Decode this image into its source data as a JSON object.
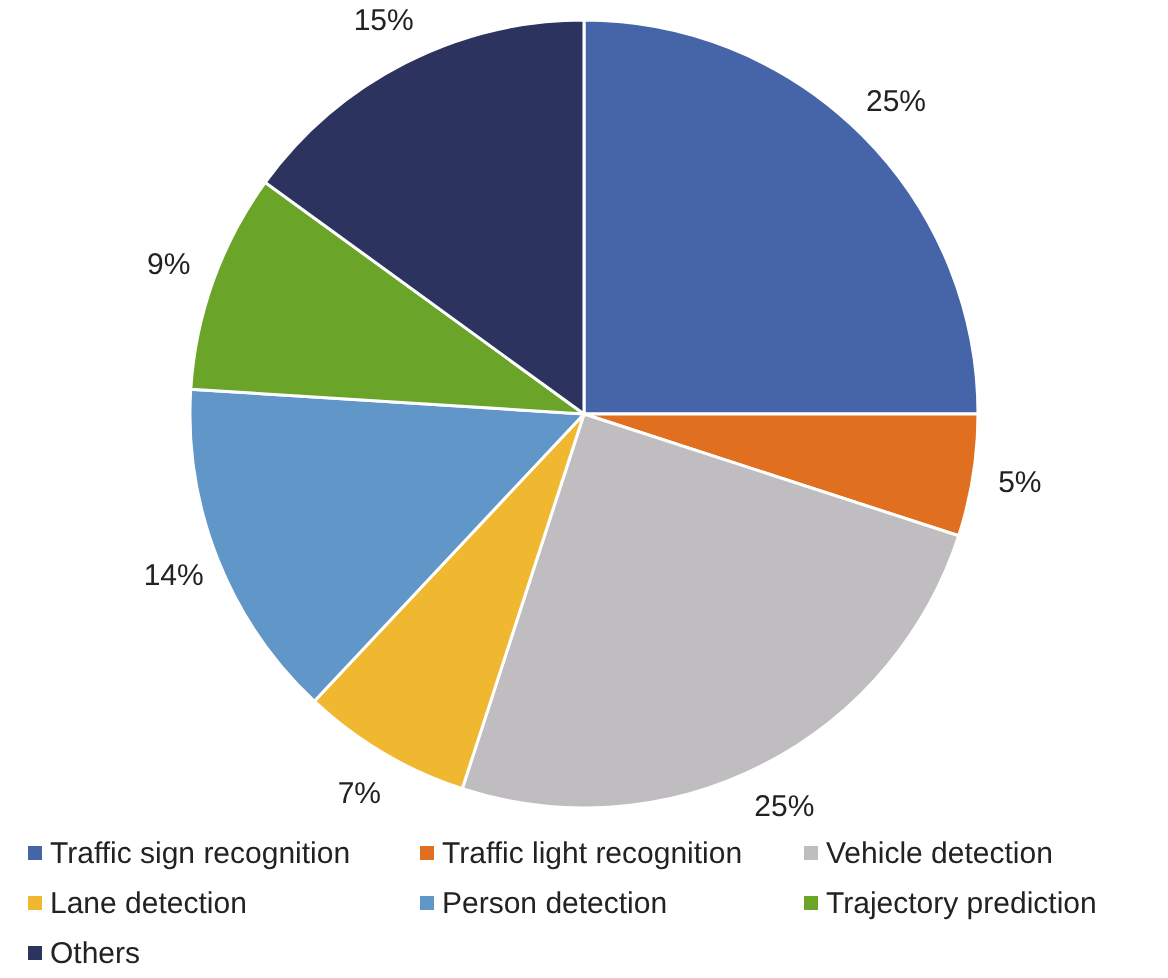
{
  "chart_data": {
    "type": "pie",
    "categories": [
      "Traffic sign recognition",
      "Traffic light recognition",
      "Vehicle detection",
      "Lane detection",
      "Person detection",
      "Trajectory prediction",
      "Others"
    ],
    "values": [
      25,
      5,
      25,
      7,
      14,
      9,
      15
    ],
    "colors": [
      "#4565a8",
      "#e07020",
      "#bfbdbf",
      "#f0b830",
      "#6096c8",
      "#6aa52a",
      "#2c335f"
    ],
    "value_labels": [
      "25%",
      "5%",
      "25%",
      "7%",
      "14%",
      "9%",
      "15%"
    ],
    "legend": "bottom"
  }
}
